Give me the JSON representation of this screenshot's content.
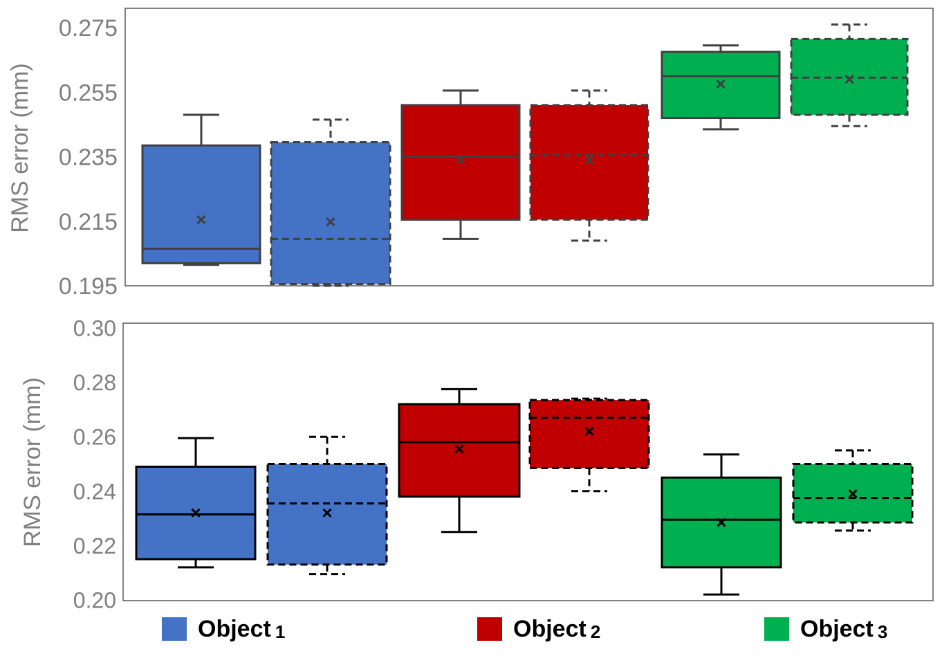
{
  "chart_data": [
    {
      "type": "box",
      "ylabel": "RMS error (mm)",
      "ylim": [
        0.195,
        0.281
      ],
      "yticks": [
        "0.195",
        "0.215",
        "0.235",
        "0.255",
        "0.275"
      ],
      "grid": false,
      "boxes": [
        {
          "group": "Object 1",
          "style": "solid",
          "whisker_low": 0.2015,
          "q1": 0.202,
          "median": 0.2065,
          "q3": 0.2385,
          "whisker_high": 0.248,
          "mean": 0.2155
        },
        {
          "group": "Object 1",
          "style": "dashed",
          "whisker_low": 0.195,
          "q1": 0.1955,
          "median": 0.2095,
          "q3": 0.2395,
          "whisker_high": 0.2465,
          "mean": 0.2148
        },
        {
          "group": "Object 2",
          "style": "solid",
          "whisker_low": 0.2095,
          "q1": 0.2155,
          "median": 0.235,
          "q3": 0.251,
          "whisker_high": 0.2555,
          "mean": 0.234
        },
        {
          "group": "Object 2",
          "style": "dashed",
          "whisker_low": 0.209,
          "q1": 0.2155,
          "median": 0.2355,
          "q3": 0.251,
          "whisker_high": 0.2555,
          "mean": 0.234
        },
        {
          "group": "Object 3",
          "style": "solid",
          "whisker_low": 0.2435,
          "q1": 0.247,
          "median": 0.26,
          "q3": 0.2675,
          "whisker_high": 0.2695,
          "mean": 0.2575
        },
        {
          "group": "Object 3",
          "style": "dashed",
          "whisker_low": 0.2445,
          "q1": 0.248,
          "median": 0.2595,
          "q3": 0.2715,
          "whisker_high": 0.276,
          "mean": 0.259
        }
      ]
    },
    {
      "type": "box",
      "ylabel": "RMS error (mm)",
      "ylim": [
        0.2,
        0.3
      ],
      "yticks": [
        "0.20",
        "0.22",
        "0.24",
        "0.26",
        "0.28",
        "0.30"
      ],
      "grid": false,
      "boxes": [
        {
          "group": "Object 1",
          "style": "solid",
          "whisker_low": 0.212,
          "q1": 0.215,
          "median": 0.2315,
          "q3": 0.249,
          "whisker_high": 0.2595,
          "mean": 0.232
        },
        {
          "group": "Object 1",
          "style": "dashed",
          "whisker_low": 0.2095,
          "q1": 0.213,
          "median": 0.2355,
          "q3": 0.25,
          "whisker_high": 0.26,
          "mean": 0.232
        },
        {
          "group": "Object 2",
          "style": "solid",
          "whisker_low": 0.225,
          "q1": 0.238,
          "median": 0.258,
          "q3": 0.272,
          "whisker_high": 0.2775,
          "mean": 0.2555
        },
        {
          "group": "Object 2",
          "style": "dashed",
          "whisker_low": 0.24,
          "q1": 0.2485,
          "median": 0.267,
          "q3": 0.2735,
          "whisker_high": 0.274,
          "mean": 0.262
        },
        {
          "group": "Object 3",
          "style": "solid",
          "whisker_low": 0.202,
          "q1": 0.212,
          "median": 0.2295,
          "q3": 0.245,
          "whisker_high": 0.2535,
          "mean": 0.2285
        },
        {
          "group": "Object 3",
          "style": "dashed",
          "whisker_low": 0.2255,
          "q1": 0.2285,
          "median": 0.2375,
          "q3": 0.25,
          "whisker_high": 0.255,
          "mean": 0.239
        }
      ]
    }
  ],
  "legend": {
    "placement": "bottom",
    "items": [
      {
        "label": "Object",
        "sub": "1",
        "color": "#4472c4"
      },
      {
        "label": "Object",
        "sub": "2",
        "color": "#c00000"
      },
      {
        "label": "Object",
        "sub": "3",
        "color": "#00b050"
      }
    ]
  }
}
